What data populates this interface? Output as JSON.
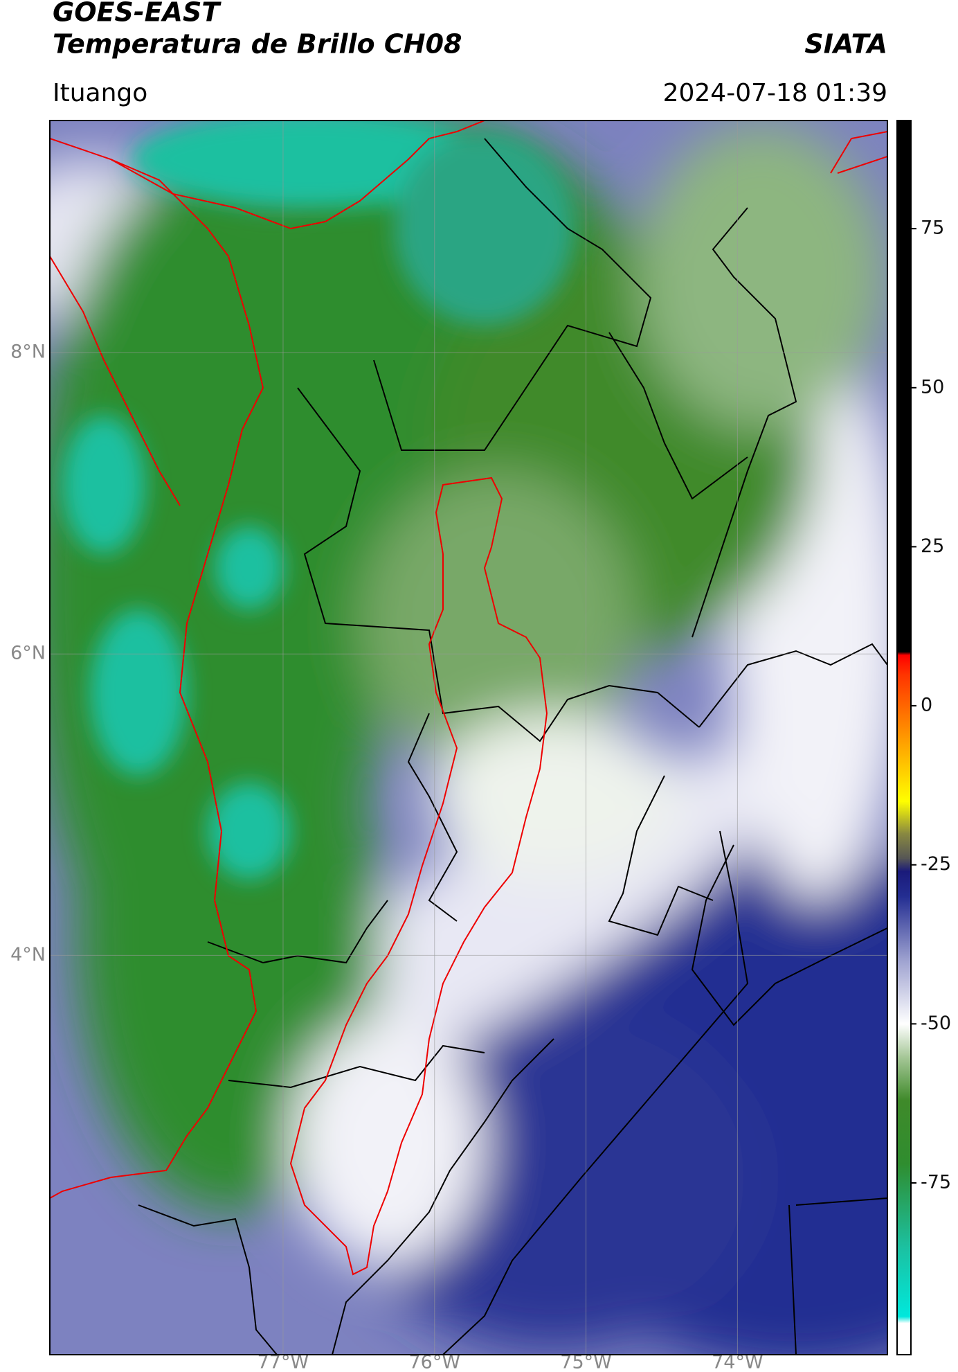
{
  "chart_data": {
    "type": "map",
    "title": "GOES-EAST",
    "subtitle": "Temperatura de Brillo CH08",
    "brand": "SIATA",
    "location": "Ituango",
    "datetime": "2024-07-18 01:39",
    "xlim": [
      -78.54,
      -73.01
    ],
    "ylim": [
      1.35,
      9.54
    ],
    "xticks": [
      {
        "value": -77,
        "label": "77°W"
      },
      {
        "value": -76,
        "label": "76°W"
      },
      {
        "value": -75,
        "label": "75°W"
      },
      {
        "value": -74,
        "label": "74°W"
      }
    ],
    "yticks": [
      {
        "value": 8,
        "label": "8°N"
      },
      {
        "value": 6,
        "label": "6°N"
      },
      {
        "value": 4,
        "label": "4°N"
      }
    ],
    "grid": true,
    "clim": [
      -102,
      92
    ],
    "cticks": [
      75,
      50,
      25,
      0,
      -25,
      -50,
      -75
    ],
    "colormap": [
      {
        "value": -102,
        "color": "#ffffff"
      },
      {
        "value": -97,
        "color": "#ffffff"
      },
      {
        "value": -96,
        "color": "#00e8dc"
      },
      {
        "value": -85,
        "color": "#1cc0a0"
      },
      {
        "value": -72,
        "color": "#2f8d2f"
      },
      {
        "value": -62,
        "color": "#3f8a2a"
      },
      {
        "value": -55,
        "color": "#a9c99b"
      },
      {
        "value": -50,
        "color": "#ffffff"
      },
      {
        "value": -40,
        "color": "#9ea2d0"
      },
      {
        "value": -30,
        "color": "#242e92"
      },
      {
        "value": -26,
        "color": "#1a1a7a"
      },
      {
        "value": -24,
        "color": "#555555"
      },
      {
        "value": -20,
        "color": "#8a8a40"
      },
      {
        "value": -15,
        "color": "#ffff00"
      },
      {
        "value": -5,
        "color": "#ff9900"
      },
      {
        "value": 5,
        "color": "#ff3300"
      },
      {
        "value": 8,
        "color": "#ff0000"
      },
      {
        "value": 8.5,
        "color": "#000000"
      },
      {
        "value": 92,
        "color": "#000000"
      }
    ]
  }
}
